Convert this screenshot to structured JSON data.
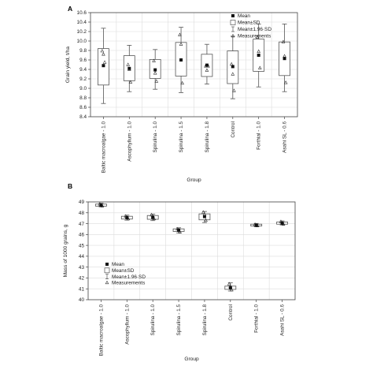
{
  "chart_data": [
    {
      "type": "box",
      "panel_label": "A",
      "xlabel": "Group",
      "ylabel": "Grain yield, t/ha",
      "ylim": [
        8.4,
        10.6
      ],
      "yticks": [
        8.4,
        8.6,
        8.8,
        9.0,
        9.2,
        9.4,
        9.6,
        9.8,
        10.0,
        10.2,
        10.4,
        10.6
      ],
      "grid": true,
      "legend_position": "top-right",
      "legend": [
        "Mean",
        "Mean±SD",
        "Mean±1.96·SD",
        "Measurements"
      ],
      "categories": [
        "Baltic macroalgae - 1.0",
        "Ascophyllum - 1.0",
        "Spirulina - 1.0",
        "Spirulina - 1.5",
        "Spirulina - 1.8",
        "Control",
        "Forthial - 1.0",
        "Asahi SL - 0.6"
      ],
      "series": [
        {
          "mean": 9.48,
          "sd_low": 9.07,
          "sd_high": 9.84,
          "ci_low": 8.68,
          "ci_high": 10.27,
          "measurements": [
            9.79,
            9.72,
            9.55
          ]
        },
        {
          "mean": 9.42,
          "sd_low": 9.16,
          "sd_high": 9.69,
          "ci_low": 8.93,
          "ci_high": 9.91,
          "measurements": [
            9.5,
            9.4,
            9.13
          ]
        },
        {
          "mean": 9.39,
          "sd_low": 9.21,
          "sd_high": 9.61,
          "ci_low": 8.98,
          "ci_high": 9.82,
          "measurements": [
            9.58,
            9.32,
            9.15
          ]
        },
        {
          "mean": 9.6,
          "sd_low": 9.26,
          "sd_high": 9.97,
          "ci_low": 8.91,
          "ci_high": 10.29,
          "measurements": [
            10.13,
            9.93,
            9.11
          ]
        },
        {
          "mean": 9.49,
          "sd_low": 9.25,
          "sd_high": 9.72,
          "ci_low": 9.09,
          "ci_high": 9.93,
          "measurements": [
            9.47,
            9.38,
            9.47
          ]
        },
        {
          "mean": 9.46,
          "sd_low": 9.1,
          "sd_high": 9.79,
          "ci_low": 8.78,
          "ci_high": 10.1,
          "measurements": [
            9.51,
            9.3,
            8.95
          ]
        },
        {
          "mean": 9.7,
          "sd_low": 9.36,
          "sd_high": 10.04,
          "ci_low": 9.03,
          "ci_high": 10.36,
          "measurements": [
            10.08,
            9.78,
            9.43
          ]
        },
        {
          "mean": 9.63,
          "sd_low": 9.27,
          "sd_high": 9.98,
          "ci_low": 8.93,
          "ci_high": 10.36,
          "measurements": [
            9.98,
            9.68,
            9.12
          ]
        }
      ]
    },
    {
      "type": "box",
      "panel_label": "B",
      "xlabel": "Group",
      "ylabel": "Mass of 1000 grains, g",
      "ylim": [
        40,
        49
      ],
      "yticks": [
        40,
        41,
        42,
        43,
        44,
        45,
        46,
        47,
        48,
        49
      ],
      "grid": true,
      "legend_position": "bottom-left",
      "legend": [
        "Mean",
        "Mean±SD",
        "Mean±1.96·SD",
        "Measurements"
      ],
      "categories": [
        "Baltic macroalgae - 1.0",
        "Ascophyllum - 1.0",
        "Spirulina - 1.0",
        "Spirulina - 1.5",
        "Spirulina - 1.8",
        "Control",
        "Forthial - 1.0",
        "Asahi SL - 0.6"
      ],
      "series": [
        {
          "mean": 48.7,
          "sd_low": 48.61,
          "sd_high": 48.8,
          "ci_low": 48.55,
          "ci_high": 48.88,
          "measurements": [
            48.8,
            48.68,
            48.62
          ]
        },
        {
          "mean": 47.55,
          "sd_low": 47.42,
          "sd_high": 47.68,
          "ci_low": 47.32,
          "ci_high": 47.78,
          "measurements": [
            47.68,
            47.55,
            47.45
          ]
        },
        {
          "mean": 47.58,
          "sd_low": 47.4,
          "sd_high": 47.75,
          "ci_low": 47.28,
          "ci_high": 47.88,
          "measurements": [
            47.8,
            47.6,
            47.45
          ]
        },
        {
          "mean": 46.4,
          "sd_low": 46.28,
          "sd_high": 46.52,
          "ci_low": 46.15,
          "ci_high": 46.62,
          "measurements": [
            46.5,
            46.38,
            46.22
          ]
        },
        {
          "mean": 47.65,
          "sd_low": 47.35,
          "sd_high": 47.9,
          "ci_low": 47.1,
          "ci_high": 48.12,
          "measurements": [
            48.05,
            47.85,
            47.3
          ]
        },
        {
          "mean": 41.1,
          "sd_low": 40.95,
          "sd_high": 41.25,
          "ci_low": 40.8,
          "ci_high": 41.55,
          "measurements": [
            41.45,
            41.2,
            40.9
          ]
        },
        {
          "mean": 46.85,
          "sd_low": 46.78,
          "sd_high": 46.95,
          "ci_low": 46.72,
          "ci_high": 47.02,
          "measurements": [
            46.92,
            46.85,
            46.8
          ]
        },
        {
          "mean": 47.05,
          "sd_low": 46.95,
          "sd_high": 47.15,
          "ci_low": 46.88,
          "ci_high": 47.25,
          "measurements": [
            47.18,
            47.05,
            46.95
          ]
        }
      ]
    }
  ],
  "style": {
    "box_edge": "#555555",
    "grid": "#dcdcdc",
    "marker": "#111111"
  }
}
